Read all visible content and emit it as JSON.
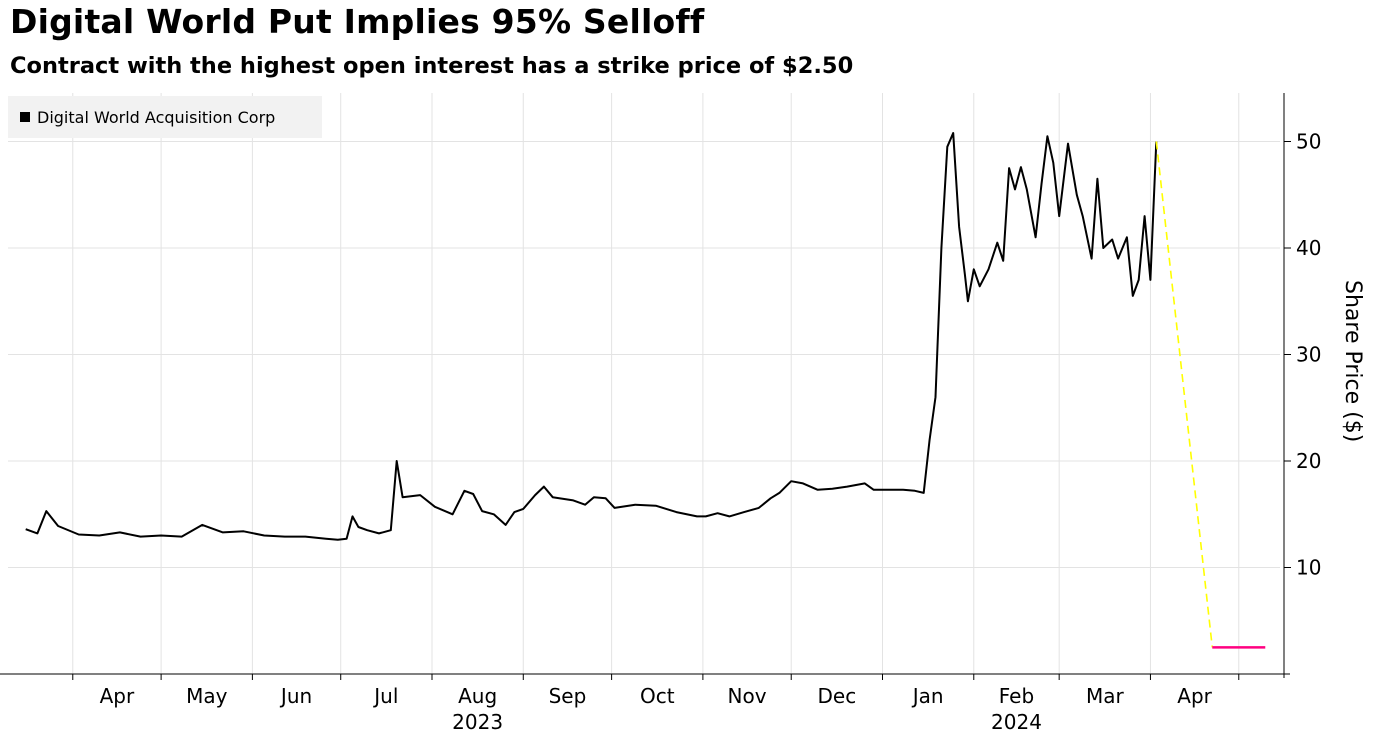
{
  "title": "Digital World Put Implies 95% Selloff",
  "subtitle": "Contract with the highest open interest has a strike price of $2.50",
  "chart_data": {
    "type": "line",
    "title": "Digital World Put Implies 95% Selloff",
    "subtitle": "Contract with the highest open interest has a strike price of $2.50",
    "ylabel": "Share Price ($)",
    "xlabel": "",
    "ylim": [
      0,
      55
    ],
    "yticks": [
      10,
      20,
      30,
      40,
      50
    ],
    "xticks": [
      "Apr",
      "May",
      "Jun",
      "Jul",
      "Aug",
      "Sep",
      "Oct",
      "Nov",
      "Dec",
      "Jan",
      "Feb",
      "Mar",
      "Apr"
    ],
    "year_labels": [
      {
        "label": "2023",
        "under_month": "Aug"
      },
      {
        "label": "2024",
        "under_month": "Feb"
      }
    ],
    "legend": {
      "position": "top-left",
      "entries": [
        "Digital World Acquisition Corp"
      ]
    },
    "grid": true,
    "colors": {
      "series": "#000000",
      "projection": "#ffff00",
      "strike": "#ff0080"
    },
    "series": [
      {
        "name": "Digital World Acquisition Corp",
        "points": [
          [
            "2023-03-16",
            13.6
          ],
          [
            "2023-03-20",
            13.2
          ],
          [
            "2023-03-23",
            15.3
          ],
          [
            "2023-03-27",
            13.9
          ],
          [
            "2023-04-03",
            13.1
          ],
          [
            "2023-04-10",
            13.0
          ],
          [
            "2023-04-17",
            13.3
          ],
          [
            "2023-04-24",
            12.9
          ],
          [
            "2023-05-01",
            13.0
          ],
          [
            "2023-05-08",
            12.9
          ],
          [
            "2023-05-15",
            14.0
          ],
          [
            "2023-05-22",
            13.3
          ],
          [
            "2023-05-29",
            13.4
          ],
          [
            "2023-06-05",
            13.0
          ],
          [
            "2023-06-12",
            12.9
          ],
          [
            "2023-06-19",
            12.9
          ],
          [
            "2023-06-26",
            12.7
          ],
          [
            "2023-06-30",
            12.6
          ],
          [
            "2023-07-03",
            12.7
          ],
          [
            "2023-07-05",
            14.8
          ],
          [
            "2023-07-07",
            13.8
          ],
          [
            "2023-07-10",
            13.5
          ],
          [
            "2023-07-14",
            13.2
          ],
          [
            "2023-07-18",
            13.5
          ],
          [
            "2023-07-20",
            20.0
          ],
          [
            "2023-07-22",
            16.6
          ],
          [
            "2023-07-28",
            16.8
          ],
          [
            "2023-08-02",
            15.7
          ],
          [
            "2023-08-08",
            15.0
          ],
          [
            "2023-08-12",
            17.2
          ],
          [
            "2023-08-15",
            16.9
          ],
          [
            "2023-08-18",
            15.3
          ],
          [
            "2023-08-22",
            15.0
          ],
          [
            "2023-08-26",
            14.0
          ],
          [
            "2023-08-29",
            15.2
          ],
          [
            "2023-09-01",
            15.5
          ],
          [
            "2023-09-05",
            16.8
          ],
          [
            "2023-09-08",
            17.6
          ],
          [
            "2023-09-11",
            16.6
          ],
          [
            "2023-09-18",
            16.3
          ],
          [
            "2023-09-22",
            15.9
          ],
          [
            "2023-09-25",
            16.6
          ],
          [
            "2023-09-29",
            16.5
          ],
          [
            "2023-10-02",
            15.6
          ],
          [
            "2023-10-09",
            15.9
          ],
          [
            "2023-10-16",
            15.8
          ],
          [
            "2023-10-23",
            15.2
          ],
          [
            "2023-10-30",
            14.8
          ],
          [
            "2023-11-02",
            14.8
          ],
          [
            "2023-11-06",
            15.1
          ],
          [
            "2023-11-10",
            14.8
          ],
          [
            "2023-11-15",
            15.2
          ],
          [
            "2023-11-20",
            15.6
          ],
          [
            "2023-11-24",
            16.5
          ],
          [
            "2023-11-27",
            17.0
          ],
          [
            "2023-12-01",
            18.1
          ],
          [
            "2023-12-05",
            17.9
          ],
          [
            "2023-12-10",
            17.3
          ],
          [
            "2023-12-15",
            17.4
          ],
          [
            "2023-12-20",
            17.6
          ],
          [
            "2023-12-26",
            17.9
          ],
          [
            "2023-12-29",
            17.3
          ],
          [
            "2024-01-02",
            17.3
          ],
          [
            "2024-01-08",
            17.3
          ],
          [
            "2024-01-12",
            17.2
          ],
          [
            "2024-01-15",
            17.0
          ],
          [
            "2024-01-17",
            22.0
          ],
          [
            "2024-01-19",
            26.0
          ],
          [
            "2024-01-21",
            40.0
          ],
          [
            "2024-01-23",
            49.5
          ],
          [
            "2024-01-25",
            50.8
          ],
          [
            "2024-01-27",
            42.0
          ],
          [
            "2024-01-29",
            37.5
          ],
          [
            "2024-01-30",
            35.0
          ],
          [
            "2024-02-01",
            38.0
          ],
          [
            "2024-02-03",
            36.4
          ],
          [
            "2024-02-06",
            38.0
          ],
          [
            "2024-02-09",
            40.5
          ],
          [
            "2024-02-11",
            38.8
          ],
          [
            "2024-02-13",
            47.5
          ],
          [
            "2024-02-15",
            45.5
          ],
          [
            "2024-02-17",
            47.6
          ],
          [
            "2024-02-19",
            45.5
          ],
          [
            "2024-02-22",
            41.0
          ],
          [
            "2024-02-24",
            46.0
          ],
          [
            "2024-02-26",
            50.5
          ],
          [
            "2024-02-28",
            48.0
          ],
          [
            "2024-03-01",
            43.0
          ],
          [
            "2024-03-04",
            49.8
          ],
          [
            "2024-03-07",
            45.0
          ],
          [
            "2024-03-09",
            43.0
          ],
          [
            "2024-03-12",
            39.0
          ],
          [
            "2024-03-14",
            46.5
          ],
          [
            "2024-03-16",
            40.0
          ],
          [
            "2024-03-19",
            40.8
          ],
          [
            "2024-03-21",
            39.0
          ],
          [
            "2024-03-24",
            41.0
          ],
          [
            "2024-03-26",
            35.5
          ],
          [
            "2024-03-28",
            37.0
          ],
          [
            "2024-03-30",
            43.0
          ],
          [
            "2024-04-01",
            37.0
          ],
          [
            "2024-04-03",
            50.0
          ]
        ]
      }
    ],
    "projection": [
      [
        "2024-04-03",
        50.0
      ],
      [
        "2024-04-22",
        2.5
      ]
    ],
    "strike": {
      "value": 2.5,
      "from": "2024-04-22",
      "to": "2024-05-10"
    }
  }
}
